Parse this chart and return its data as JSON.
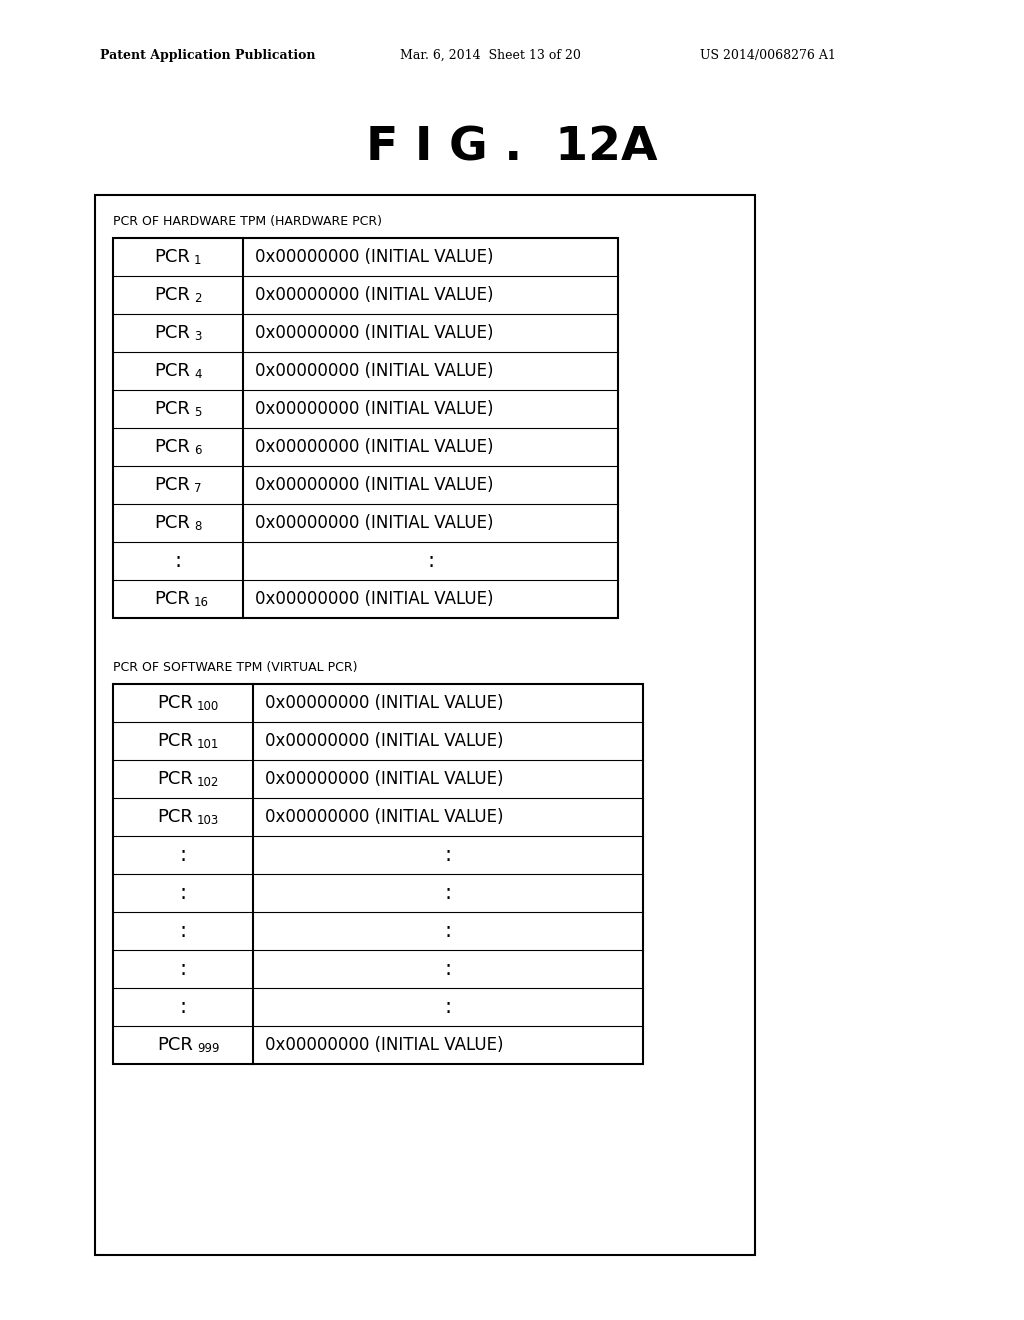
{
  "title": "F I G .  12A",
  "header_line1": "Patent Application Publication",
  "header_line2": "Mar. 6, 2014  Sheet 13 of 20",
  "header_line3": "US 2014/0068276 A1",
  "bg_color": "#ffffff",
  "hardware_label": "PCR OF HARDWARE TPM (HARDWARE PCR)",
  "software_label": "PCR OF SOFTWARE TPM (VIRTUAL PCR)",
  "hw_rows": [
    [
      "PCR",
      "1",
      "0x00000000 (INITIAL VALUE)"
    ],
    [
      "PCR",
      "2",
      "0x00000000 (INITIAL VALUE)"
    ],
    [
      "PCR",
      "3",
      "0x00000000 (INITIAL VALUE)"
    ],
    [
      "PCR",
      "4",
      "0x00000000 (INITIAL VALUE)"
    ],
    [
      "PCR",
      "5",
      "0x00000000 (INITIAL VALUE)"
    ],
    [
      "PCR",
      "6",
      "0x00000000 (INITIAL VALUE)"
    ],
    [
      "PCR",
      "7",
      "0x00000000 (INITIAL VALUE)"
    ],
    [
      "PCR",
      "8",
      "0x00000000 (INITIAL VALUE)"
    ],
    [
      ":",
      "",
      ":"
    ],
    [
      "PCR",
      "16",
      "0x00000000 (INITIAL VALUE)"
    ]
  ],
  "sw_rows": [
    [
      "PCR",
      "100",
      "0x00000000 (INITIAL VALUE)"
    ],
    [
      "PCR",
      "101",
      "0x00000000 (INITIAL VALUE)"
    ],
    [
      "PCR",
      "102",
      "0x00000000 (INITIAL VALUE)"
    ],
    [
      "PCR",
      "103",
      "0x00000000 (INITIAL VALUE)"
    ],
    [
      ":",
      "",
      ":"
    ],
    [
      ":",
      "",
      ":"
    ],
    [
      ":",
      "",
      ":"
    ],
    [
      ":",
      "",
      ":"
    ],
    [
      ":",
      "",
      ":"
    ],
    [
      "PCR",
      "999",
      "0x00000000 (INITIAL VALUE)"
    ]
  ]
}
